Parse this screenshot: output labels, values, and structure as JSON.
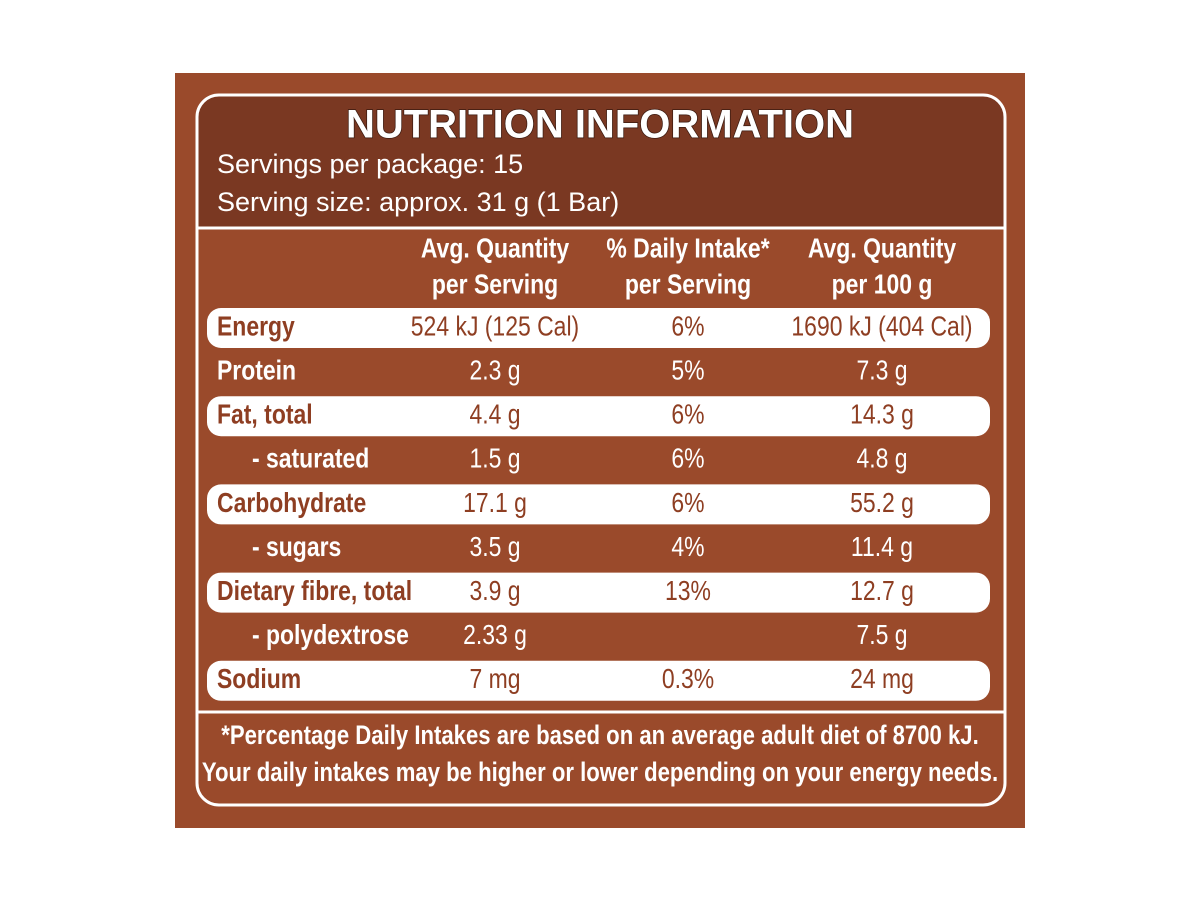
{
  "title": "NUTRITION INFORMATION",
  "servings": [
    "Servings per package: 15",
    "Serving size: approx. 31 g (1 Bar)"
  ],
  "table": {
    "header": [
      [
        "Avg. Quantity",
        "per Serving"
      ],
      [
        "% Daily Intake*",
        "per Serving"
      ],
      [
        "Avg. Quantity",
        "per 100 g"
      ]
    ],
    "rows": [
      [
        "Energy",
        "524 kJ (125 Cal)",
        "6%",
        "1690 kJ (404 Cal)"
      ],
      [
        "Protein",
        "2.3 g",
        "5%",
        "7.3 g"
      ],
      [
        "Fat, total",
        "4.4 g",
        "6%",
        "14.3 g"
      ],
      [
        "- saturated",
        "1.5 g",
        "6%",
        "4.8 g"
      ],
      [
        "Carbohydrate",
        "17.1 g",
        "6%",
        "55.2 g"
      ],
      [
        "- sugars",
        "3.5 g",
        "4%",
        "11.4 g"
      ],
      [
        "Dietary fibre, total",
        "3.9 g",
        "13%",
        "12.7 g"
      ],
      [
        "- polydextrose",
        "2.33 g",
        null,
        "7.5 g"
      ],
      [
        "Sodium",
        "7 mg",
        "0.3%",
        "24 mg"
      ]
    ]
  },
  "footnote": [
    "*Percentage Daily Intakes are based on an average adult diet of 8700 kJ.",
    "Your daily intakes may be higher or lower depending on your energy needs."
  ]
}
